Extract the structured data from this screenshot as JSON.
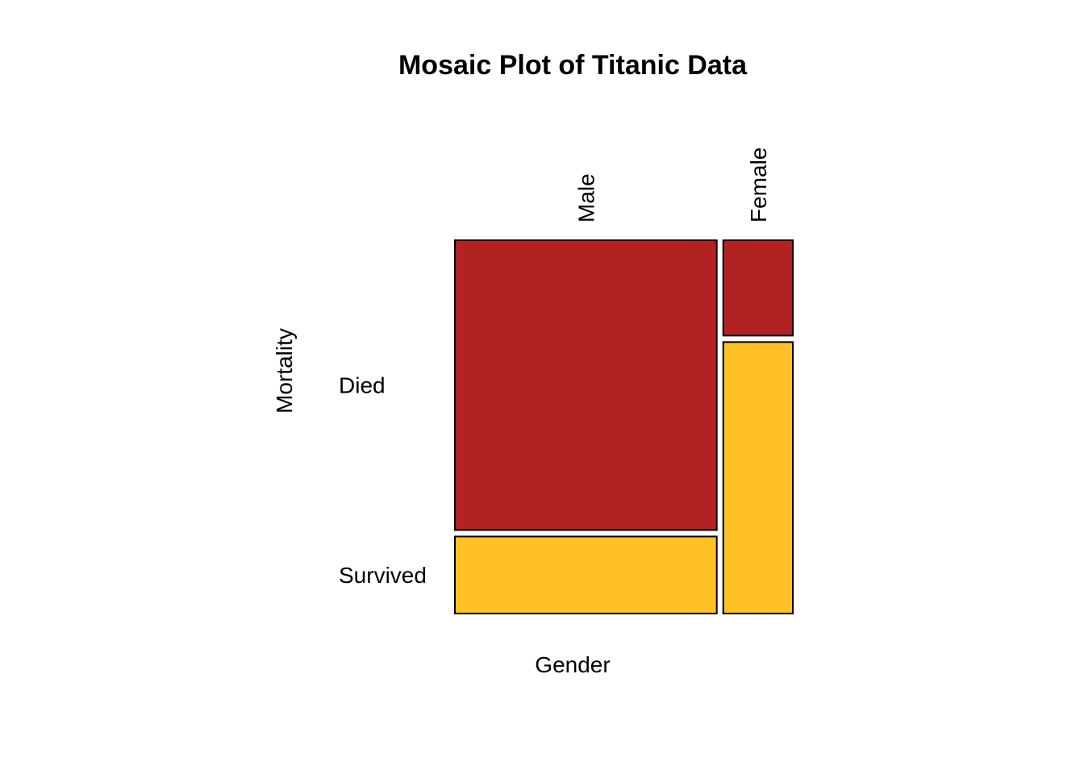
{
  "chart_data": {
    "type": "mosaic",
    "title": "Mosaic Plot of Titanic Data",
    "xlabel": "Gender",
    "ylabel": "Mortality",
    "x_categories": [
      "Male",
      "Female"
    ],
    "y_categories": [
      "Died",
      "Survived"
    ],
    "x_proportions": [
      0.79,
      0.21
    ],
    "conditional_proportions": {
      "Male": {
        "Died": 0.79,
        "Survived": 0.21
      },
      "Female": {
        "Died": 0.26,
        "Survived": 0.74
      }
    },
    "colors": {
      "Died": "#B22222",
      "Survived": "#FFC125"
    },
    "border_color": "#000000"
  }
}
